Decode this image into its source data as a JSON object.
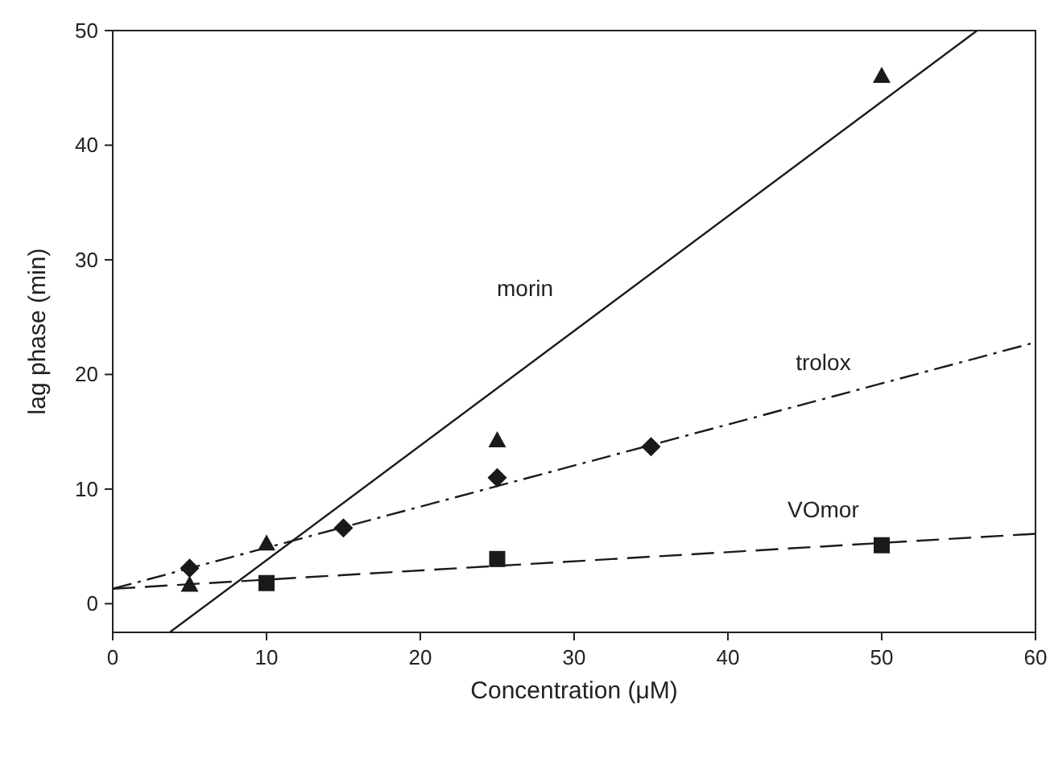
{
  "chart_data": {
    "type": "scatter",
    "xlabel": "Concentration (μM)",
    "ylabel": "lag phase (min)",
    "xlim": [
      0,
      60
    ],
    "ylim": [
      -2.5,
      50
    ],
    "xticks": [
      0,
      10,
      20,
      30,
      40,
      50,
      60
    ],
    "yticks": [
      0,
      10,
      20,
      30,
      40,
      50
    ],
    "grid": false,
    "series": [
      {
        "color": "#1a1a1a",
        "marker": "triangle",
        "x": [
          5,
          10,
          25,
          50
        ],
        "values": [
          1.6,
          5.2,
          14.2,
          46
        ]
      },
      {
        "color": "#1a1a1a",
        "marker": "diamond",
        "x": [
          5,
          15,
          25,
          35
        ],
        "values": [
          3.1,
          6.6,
          11,
          13.7
        ]
      },
      {
        "color": "#1a1a1a",
        "marker": "square",
        "x": [
          10,
          25,
          50
        ],
        "values": [
          1.8,
          3.9,
          5.1
        ]
      },
      {
        "type": "line",
        "name": "morin",
        "color": "#1a1a1a",
        "line_style": "solid",
        "x": [
          3.7,
          56.2
        ],
        "values": [
          -2.5,
          50
        ]
      },
      {
        "type": "line",
        "name": "trolox",
        "color": "#1a1a1a",
        "line_style": "dashdot",
        "x": [
          0,
          60
        ],
        "values": [
          1.3,
          22.8
        ]
      },
      {
        "type": "line",
        "name": "VOmor",
        "color": "#1a1a1a",
        "line_style": "dashed",
        "x": [
          0,
          60
        ],
        "values": [
          1.3,
          6.1
        ]
      }
    ]
  }
}
